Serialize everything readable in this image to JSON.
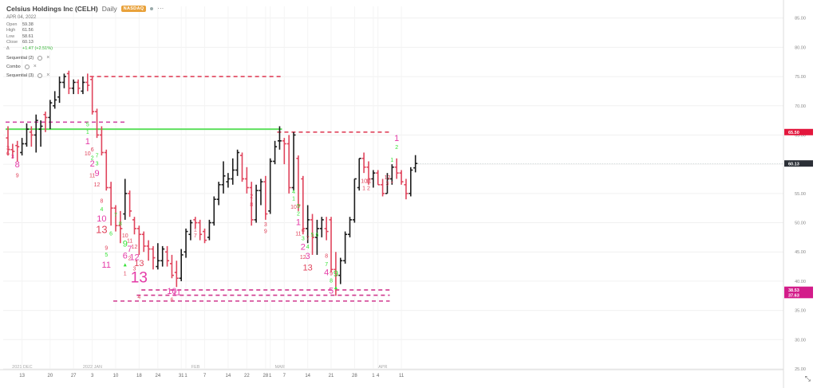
{
  "header": {
    "title": "Celsius Holdings Inc (CELH)",
    "interval": "Daily",
    "exchange": "NASDAQ",
    "date": "APR 04, 2022",
    "ohlc": [
      {
        "k": "Open",
        "v": "59.38"
      },
      {
        "k": "High",
        "v": "61.56"
      },
      {
        "k": "Low",
        "v": "58.61"
      },
      {
        "k": "Close",
        "v": "60.13"
      }
    ],
    "change_symbol": "Δ",
    "change": "+1.47 (+2.51%)",
    "indicators": [
      "Sequential (2)",
      "Combo",
      "Sequential (3)"
    ]
  },
  "colors": {
    "up": "#1c1c1c",
    "down": "#e0445c",
    "green": "#36e236",
    "magenta": "#e43aa7",
    "price_tag": "#2b2f36",
    "level_red": "#e3173d",
    "level_pink": "#d31c8a"
  },
  "chart_data": {
    "type": "ohlc",
    "ylim": [
      25,
      87
    ],
    "y_ticks": [
      "85.00",
      "80.00",
      "75.00",
      "70.00",
      "65.00",
      "60.00",
      "55.00",
      "50.00",
      "45.00",
      "40.00",
      "35.00",
      "30.00",
      "25.00"
    ],
    "y_tick_values": [
      85,
      80,
      75,
      70,
      65,
      60,
      55,
      50,
      45,
      40,
      35,
      30,
      25
    ],
    "x_tick_labels": [
      {
        "i": 3,
        "t": "13"
      },
      {
        "i": 9,
        "t": "20"
      },
      {
        "i": 14,
        "t": "27"
      },
      {
        "i": 18,
        "t": "3"
      },
      {
        "i": 23,
        "t": "10"
      },
      {
        "i": 28,
        "t": "18"
      },
      {
        "i": 32,
        "t": "24"
      },
      {
        "i": 37,
        "t": "31"
      },
      {
        "i": 38,
        "t": "1"
      },
      {
        "i": 42,
        "t": "7"
      },
      {
        "i": 47,
        "t": "14"
      },
      {
        "i": 51,
        "t": "22"
      },
      {
        "i": 55,
        "t": "28"
      },
      {
        "i": 56,
        "t": "1"
      },
      {
        "i": 59,
        "t": "7"
      },
      {
        "i": 64,
        "t": "14"
      },
      {
        "i": 69,
        "t": "21"
      },
      {
        "i": 74,
        "t": "28"
      },
      {
        "i": 78,
        "t": "1"
      },
      {
        "i": 79,
        "t": "4"
      },
      {
        "i": 84,
        "t": "11"
      }
    ],
    "period_labels": [
      {
        "i": 1,
        "t": "2021 DEC"
      },
      {
        "i": 16,
        "t": "2022 JAN"
      },
      {
        "i": 38,
        "t": "FEB"
      },
      {
        "i": 56,
        "t": "MAR"
      },
      {
        "i": 78,
        "t": "APR"
      }
    ],
    "bars": [
      [
        64.5,
        66.5,
        61.5,
        62.5
      ],
      [
        62.5,
        63.5,
        61.0,
        62.2
      ],
      [
        63.2,
        64.0,
        60.5,
        63.0
      ],
      [
        62.0,
        64.5,
        61.5,
        63.5
      ],
      [
        63.5,
        67.0,
        63.0,
        66.0
      ],
      [
        65.5,
        66.5,
        63.0,
        65.0
      ],
      [
        65.0,
        68.5,
        62.0,
        67.5
      ],
      [
        66.0,
        67.5,
        63.0,
        66.5
      ],
      [
        68.5,
        69.0,
        65.5,
        68.0
      ],
      [
        68.0,
        71.0,
        66.0,
        70.5
      ],
      [
        70.0,
        72.5,
        69.5,
        71.0
      ],
      [
        71.5,
        75.0,
        70.5,
        74.0
      ],
      [
        74.0,
        75.5,
        73.0,
        75.0
      ],
      [
        75.5,
        76.0,
        72.0,
        73.0
      ],
      [
        73.0,
        74.5,
        72.0,
        74.0
      ],
      [
        74.0,
        74.5,
        72.0,
        73.0
      ],
      [
        72.5,
        75.0,
        72.0,
        74.0
      ],
      [
        74.0,
        75.5,
        72.5,
        73.5
      ],
      [
        74.5,
        75.0,
        68.5,
        69.0
      ],
      [
        69.0,
        69.5,
        64.5,
        65.0
      ],
      [
        65.0,
        66.5,
        61.5,
        62.0
      ],
      [
        62.0,
        62.5,
        55.5,
        56.0
      ],
      [
        56.0,
        57.0,
        49.5,
        52.5
      ],
      [
        52.5,
        53.0,
        48.5,
        49.5
      ],
      [
        49.5,
        52.0,
        46.5,
        49.0
      ],
      [
        51.5,
        57.5,
        50.5,
        55.0
      ],
      [
        55.0,
        55.5,
        51.0,
        52.0
      ],
      [
        50.5,
        51.0,
        48.0,
        49.0
      ],
      [
        49.0,
        49.5,
        44.5,
        48.0
      ],
      [
        48.0,
        48.5,
        45.0,
        46.0
      ],
      [
        46.0,
        47.0,
        43.5,
        45.5
      ],
      [
        45.5,
        46.0,
        42.0,
        44.0
      ],
      [
        42.5,
        46.5,
        42.0,
        43.5
      ],
      [
        43.5,
        46.0,
        42.5,
        45.5
      ],
      [
        45.0,
        46.0,
        42.5,
        43.5
      ],
      [
        43.0,
        44.5,
        40.5,
        41.0
      ],
      [
        41.5,
        43.5,
        39.0,
        40.5
      ],
      [
        40.5,
        45.5,
        40.0,
        44.5
      ],
      [
        45.0,
        49.0,
        44.0,
        48.5
      ],
      [
        48.0,
        50.5,
        47.0,
        50.0
      ],
      [
        50.5,
        51.0,
        49.0,
        50.0
      ],
      [
        50.0,
        50.5,
        47.0,
        48.0
      ],
      [
        48.5,
        49.0,
        46.5,
        47.0
      ],
      [
        47.5,
        50.5,
        47.0,
        50.0
      ],
      [
        50.0,
        54.5,
        49.5,
        54.0
      ],
      [
        54.0,
        57.0,
        53.0,
        56.5
      ],
      [
        56.5,
        60.5,
        55.0,
        58.0
      ],
      [
        57.0,
        58.5,
        56.0,
        57.5
      ],
      [
        57.5,
        61.0,
        56.5,
        59.0
      ],
      [
        59.0,
        62.5,
        58.0,
        62.0
      ],
      [
        61.5,
        62.0,
        57.0,
        57.5
      ],
      [
        57.5,
        59.5,
        55.0,
        56.0
      ],
      [
        56.0,
        57.0,
        49.5,
        50.5
      ],
      [
        50.5,
        56.5,
        50.0,
        55.5
      ],
      [
        55.5,
        57.5,
        53.0,
        57.0
      ],
      [
        57.0,
        58.0,
        50.5,
        51.5
      ],
      [
        52.0,
        61.0,
        51.5,
        60.5
      ],
      [
        60.5,
        64.0,
        60.0,
        63.0
      ],
      [
        64.0,
        66.5,
        62.5,
        64.0
      ],
      [
        64.0,
        64.5,
        60.0,
        63.5
      ],
      [
        63.5,
        65.0,
        55.0,
        56.0
      ],
      [
        56.0,
        65.5,
        55.5,
        65.0
      ],
      [
        61.0,
        61.5,
        52.0,
        53.0
      ],
      [
        57.5,
        58.0,
        48.0,
        49.0
      ],
      [
        49.0,
        53.0,
        46.5,
        50.5
      ],
      [
        50.5,
        51.5,
        44.5,
        47.5
      ],
      [
        47.5,
        50.5,
        44.5,
        49.0
      ],
      [
        49.0,
        51.0,
        47.5,
        50.5
      ],
      [
        49.0,
        51.0,
        47.0,
        48.5
      ],
      [
        50.5,
        51.0,
        41.5,
        42.0
      ],
      [
        42.0,
        45.0,
        37.5,
        41.0
      ],
      [
        41.0,
        44.0,
        39.5,
        43.5
      ],
      [
        43.5,
        48.5,
        43.0,
        48.0
      ],
      [
        48.0,
        51.0,
        47.5,
        50.5
      ],
      [
        50.5,
        57.5,
        50.0,
        57.5
      ],
      [
        56.0,
        61.0,
        55.5,
        61.0
      ],
      [
        61.0,
        62.0,
        58.5,
        59.5
      ],
      [
        59.5,
        60.5,
        56.5,
        57.5
      ],
      [
        57.5,
        59.0,
        56.0,
        58.5
      ],
      [
        58.5,
        59.0,
        56.5,
        56.5
      ],
      [
        56.5,
        57.5,
        54.5,
        55.0
      ],
      [
        55.0,
        58.5,
        55.0,
        57.5
      ],
      [
        57.5,
        60.0,
        56.5,
        59.5
      ],
      [
        59.5,
        61.0,
        57.5,
        58.5
      ],
      [
        58.5,
        59.0,
        56.5,
        57.0
      ],
      [
        56.5,
        57.5,
        54.0,
        55.0
      ],
      [
        55.0,
        59.5,
        54.5,
        59.0
      ],
      [
        59.38,
        61.56,
        58.61,
        60.13
      ]
    ],
    "levels": [
      {
        "value": 75.0,
        "from": 18,
        "to": 58,
        "style": "dashed",
        "color": "#e0445c"
      },
      {
        "value": 67.2,
        "from": 0,
        "to": 25,
        "style": "dashed",
        "color": "#d24aa6"
      },
      {
        "value": 66.0,
        "from": 0,
        "to": 58,
        "style": "solid",
        "color": "#5fe05f"
      },
      {
        "value": 65.5,
        "from": 58,
        "to": 81,
        "style": "dashed",
        "color": "#e0445c"
      },
      {
        "value": 37.6,
        "from": 28,
        "to": 81,
        "style": "dashed",
        "color": "#d0388f"
      },
      {
        "value": 38.5,
        "from": 29,
        "to": 81,
        "style": "dashed",
        "color": "#d0388f"
      },
      {
        "value": 36.6,
        "from": 23,
        "to": 81,
        "style": "dashed",
        "color": "#d0388f"
      }
    ],
    "price_tags": [
      {
        "value": 65.5,
        "label": "65.50",
        "color": "#e3173d"
      },
      {
        "value": 60.13,
        "label": "60.13",
        "color": "#2b2f36"
      },
      {
        "value": 38.53,
        "label": "38.53",
        "color": "#d31c8a"
      },
      {
        "value": 37.63,
        "label": "37.63",
        "color": "#d31c8a"
      }
    ],
    "annotations": [
      {
        "i": 0,
        "y": 62.5,
        "t": "3",
        "c": "down",
        "s": 7
      },
      {
        "i": 0,
        "y": 61.5,
        "t": "6",
        "c": "down",
        "s": 7
      },
      {
        "i": 1,
        "y": 61.0,
        "t": "3",
        "c": "magenta",
        "s": 7
      },
      {
        "i": 2,
        "y": 59.5,
        "t": "8",
        "c": "magenta",
        "s": 11
      },
      {
        "i": 2,
        "y": 57.8,
        "t": "9",
        "c": "down",
        "s": 7
      },
      {
        "i": 17,
        "y": 66.5,
        "t": "5",
        "c": "green",
        "s": 7
      },
      {
        "i": 17,
        "y": 65.2,
        "t": "1",
        "c": "green",
        "s": 7
      },
      {
        "i": 17,
        "y": 63.4,
        "t": "1",
        "c": "magenta",
        "s": 11
      },
      {
        "i": 17,
        "y": 61.5,
        "t": "10",
        "c": "down",
        "s": 7
      },
      {
        "i": 18,
        "y": 62.2,
        "t": "6",
        "c": "down",
        "s": 7
      },
      {
        "i": 18,
        "y": 60.8,
        "t": "2",
        "c": "green",
        "s": 7
      },
      {
        "i": 18,
        "y": 59.6,
        "t": "2",
        "c": "magenta",
        "s": 11
      },
      {
        "i": 18,
        "y": 57.8,
        "t": "11",
        "c": "down",
        "s": 7
      },
      {
        "i": 19,
        "y": 61.2,
        "t": "7",
        "c": "green",
        "s": 7
      },
      {
        "i": 19,
        "y": 59.8,
        "t": "3",
        "c": "green",
        "s": 7
      },
      {
        "i": 19,
        "y": 58.0,
        "t": "9",
        "c": "magenta",
        "s": 11
      },
      {
        "i": 19,
        "y": 56.2,
        "t": "12",
        "c": "down",
        "s": 7
      },
      {
        "i": 20,
        "y": 53.4,
        "t": "8",
        "c": "down",
        "s": 7
      },
      {
        "i": 20,
        "y": 52.0,
        "t": "4",
        "c": "green",
        "s": 7
      },
      {
        "i": 20,
        "y": 50.2,
        "t": "10",
        "c": "magenta",
        "s": 11
      },
      {
        "i": 20,
        "y": 48.2,
        "t": "13",
        "c": "down",
        "s": 13
      },
      {
        "i": 21,
        "y": 45.4,
        "t": "9",
        "c": "down",
        "s": 7
      },
      {
        "i": 21,
        "y": 44.2,
        "t": "5",
        "c": "green",
        "s": 7
      },
      {
        "i": 21,
        "y": 42.3,
        "t": "11",
        "c": "magenta",
        "s": 11
      },
      {
        "i": 22,
        "y": 47.8,
        "t": "6",
        "c": "green",
        "s": 7
      },
      {
        "i": 23,
        "y": 51.0,
        "t": "7",
        "c": "green",
        "s": 7
      },
      {
        "i": 24,
        "y": 49.5,
        "t": "8",
        "c": "green",
        "s": 7
      },
      {
        "i": 25,
        "y": 47.5,
        "t": "10",
        "c": "down",
        "s": 7
      },
      {
        "i": 25,
        "y": 45.9,
        "t": "9",
        "c": "green",
        "s": 11
      },
      {
        "i": 25,
        "y": 43.9,
        "t": "6",
        "c": "magenta",
        "s": 11
      },
      {
        "i": 25,
        "y": 41.0,
        "t": "1",
        "c": "down",
        "s": 7
      },
      {
        "i": 26,
        "y": 46.6,
        "t": "11",
        "c": "down",
        "s": 7
      },
      {
        "i": 26,
        "y": 45.0,
        "t": "7",
        "c": "magenta",
        "s": 11
      },
      {
        "i": 26,
        "y": 43.6,
        "t": "2",
        "c": "down",
        "s": 7
      },
      {
        "i": 27,
        "y": 45.6,
        "t": "12",
        "c": "down",
        "s": 7
      },
      {
        "i": 27,
        "y": 43.6,
        "t": "12",
        "c": "magenta",
        "s": 11
      },
      {
        "i": 27,
        "y": 41.8,
        "t": "3",
        "c": "down",
        "s": 7
      },
      {
        "i": 28,
        "y": 42.6,
        "t": "13",
        "c": "down",
        "s": 11
      },
      {
        "i": 28,
        "y": 39.8,
        "t": "13",
        "c": "magenta",
        "s": 19
      },
      {
        "i": 28,
        "y": 37.0,
        "t": "4",
        "c": "down",
        "s": 7
      },
      {
        "i": 35,
        "y": 37.8,
        "t": "10",
        "c": "magenta",
        "s": 11
      },
      {
        "i": 35,
        "y": 36.5,
        "t": "6",
        "c": "down",
        "s": 7
      },
      {
        "i": 36,
        "y": 37.6,
        "t": "11",
        "c": "magenta",
        "s": 11
      },
      {
        "i": 40,
        "y": 48.5,
        "t": "1",
        "c": "down",
        "s": 7
      },
      {
        "i": 40,
        "y": 47.5,
        "t": "7",
        "c": "down",
        "s": 7
      },
      {
        "i": 52,
        "y": 54.2,
        "t": "2",
        "c": "down",
        "s": 7
      },
      {
        "i": 52,
        "y": 52.8,
        "t": "8",
        "c": "down",
        "s": 7
      },
      {
        "i": 55,
        "y": 49.4,
        "t": "3",
        "c": "down",
        "s": 7
      },
      {
        "i": 55,
        "y": 48.2,
        "t": "9",
        "c": "down",
        "s": 7
      },
      {
        "i": 61,
        "y": 55.0,
        "t": "4",
        "c": "green",
        "s": 7
      },
      {
        "i": 61,
        "y": 53.8,
        "t": "1",
        "c": "green",
        "s": 7
      },
      {
        "i": 61,
        "y": 52.4,
        "t": "10",
        "c": "down",
        "s": 7
      },
      {
        "i": 62,
        "y": 52.5,
        "t": "5",
        "c": "green",
        "s": 7
      },
      {
        "i": 62,
        "y": 51.2,
        "t": "2",
        "c": "green",
        "s": 7
      },
      {
        "i": 62,
        "y": 49.6,
        "t": "1",
        "c": "magenta",
        "s": 11
      },
      {
        "i": 62,
        "y": 47.8,
        "t": "11",
        "c": "down",
        "s": 7
      },
      {
        "i": 63,
        "y": 48.4,
        "t": "6",
        "c": "down",
        "s": 7
      },
      {
        "i": 63,
        "y": 47.0,
        "t": "3",
        "c": "green",
        "s": 7
      },
      {
        "i": 63,
        "y": 45.4,
        "t": "2",
        "c": "magenta",
        "s": 11
      },
      {
        "i": 63,
        "y": 43.8,
        "t": "12",
        "c": "down",
        "s": 7
      },
      {
        "i": 64,
        "y": 47.0,
        "t": "7",
        "c": "down",
        "s": 7
      },
      {
        "i": 64,
        "y": 45.6,
        "t": "4",
        "c": "green",
        "s": 7
      },
      {
        "i": 64,
        "y": 43.8,
        "t": "3",
        "c": "magenta",
        "s": 11
      },
      {
        "i": 64,
        "y": 41.8,
        "t": "13",
        "c": "down",
        "s": 11
      },
      {
        "i": 65,
        "y": 47.6,
        "t": "5",
        "c": "green",
        "s": 7
      },
      {
        "i": 66,
        "y": 47.6,
        "t": "6",
        "c": "green",
        "s": 7
      },
      {
        "i": 68,
        "y": 44.0,
        "t": "8",
        "c": "down",
        "s": 7
      },
      {
        "i": 68,
        "y": 42.6,
        "t": "7",
        "c": "green",
        "s": 7
      },
      {
        "i": 68,
        "y": 41.0,
        "t": "4",
        "c": "magenta",
        "s": 11
      },
      {
        "i": 69,
        "y": 41.0,
        "t": "9",
        "c": "down",
        "s": 7
      },
      {
        "i": 69,
        "y": 39.8,
        "t": "8",
        "c": "green",
        "s": 7
      },
      {
        "i": 69,
        "y": 37.9,
        "t": "5",
        "c": "magenta",
        "s": 11
      },
      {
        "i": 70,
        "y": 40.8,
        "t": "9",
        "c": "green",
        "s": 11
      },
      {
        "i": 76,
        "y": 56.8,
        "t": "10",
        "c": "down",
        "s": 7
      },
      {
        "i": 76,
        "y": 55.6,
        "t": "1",
        "c": "down",
        "s": 7
      },
      {
        "i": 77,
        "y": 56.8,
        "t": "11",
        "c": "down",
        "s": 7
      },
      {
        "i": 77,
        "y": 55.6,
        "t": "2",
        "c": "down",
        "s": 7
      },
      {
        "i": 81,
        "y": 57.4,
        "t": "12",
        "c": "down",
        "s": 7
      },
      {
        "i": 81,
        "y": 56.4,
        "t": "3",
        "c": "down",
        "s": 7
      },
      {
        "i": 82,
        "y": 56.4,
        "t": "*",
        "c": "down",
        "s": 7
      },
      {
        "i": 82,
        "y": 60.4,
        "t": "1",
        "c": "green",
        "s": 7
      },
      {
        "i": 83,
        "y": 64.0,
        "t": "1",
        "c": "magenta",
        "s": 11
      },
      {
        "i": 83,
        "y": 62.6,
        "t": "2",
        "c": "green",
        "s": 7
      }
    ],
    "arrows": [
      {
        "i": 25,
        "y": 42.8,
        "c": "green"
      },
      {
        "i": 70,
        "y": 38.9,
        "c": "green"
      }
    ]
  }
}
